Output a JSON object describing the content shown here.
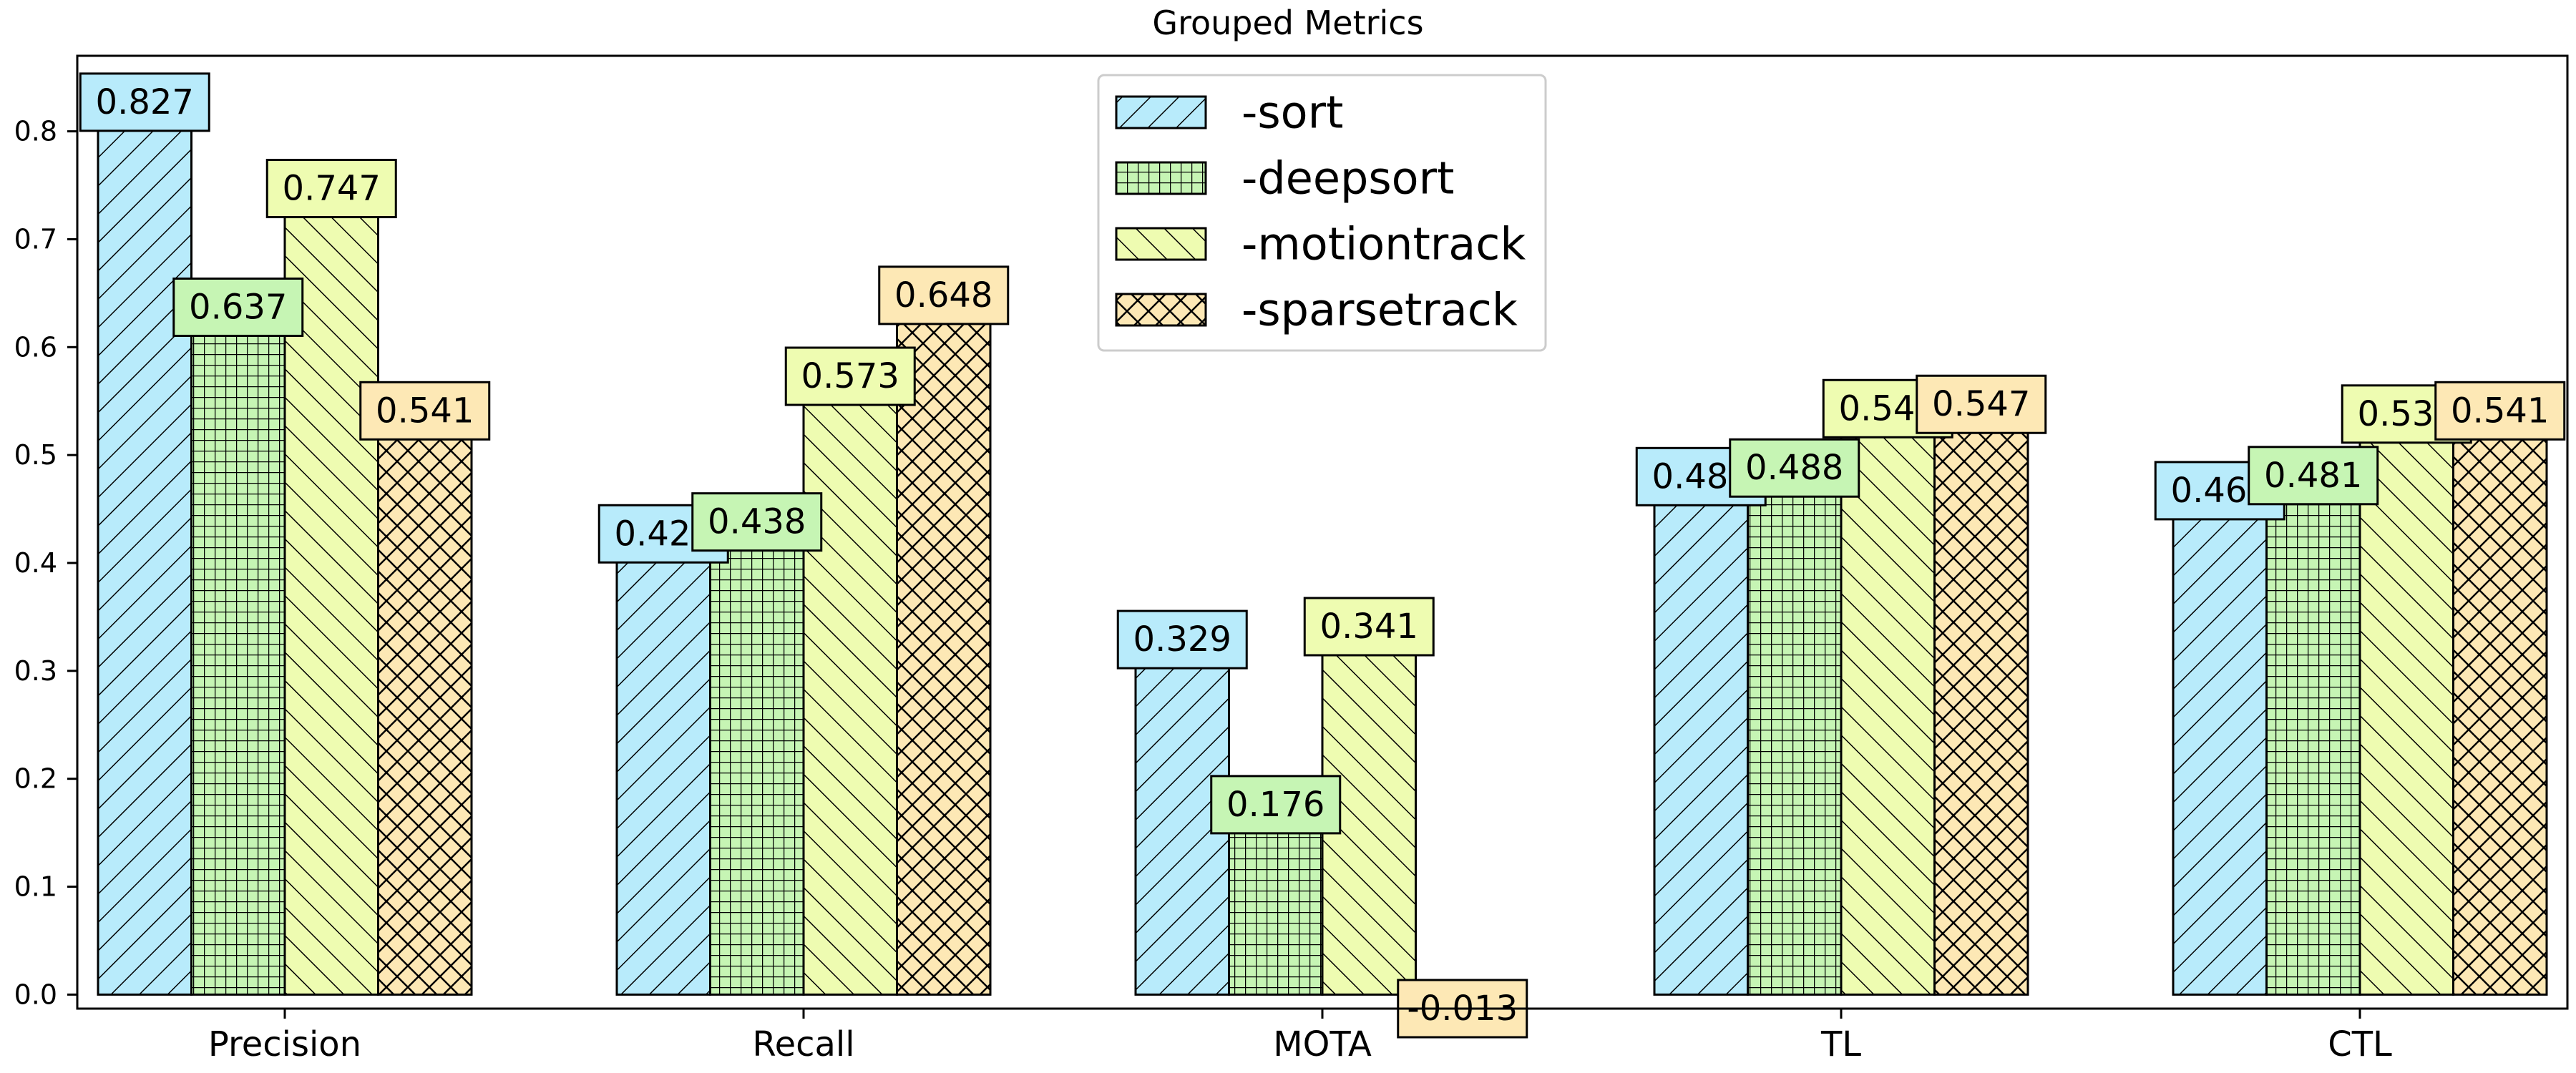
{
  "chart_data": {
    "type": "bar",
    "title": "Grouped Metrics",
    "xlabel": "",
    "ylabel": "",
    "categories": [
      "Precision",
      "Recall",
      "MOTA",
      "TL",
      "CTL"
    ],
    "series": [
      {
        "name": "-sort",
        "values": [
          0.827,
          0.427,
          0.329,
          0.48,
          0.467
        ],
        "color": "#b8ebfb",
        "hatch": "diagonal"
      },
      {
        "name": "-deepsort",
        "values": [
          0.637,
          0.438,
          0.176,
          0.488,
          0.481
        ],
        "color": "#c6f5b4",
        "hatch": "grid"
      },
      {
        "name": "-motiontrack",
        "values": [
          0.747,
          0.573,
          0.341,
          0.543,
          0.538
        ],
        "color": "#eefcb1",
        "hatch": "backdiagonal"
      },
      {
        "name": "-sparsetrack",
        "values": [
          0.541,
          0.648,
          -0.013,
          0.547,
          0.541
        ],
        "color": "#fde8b5",
        "hatch": "crosshatch"
      }
    ],
    "bar_heights": [
      [
        0.827,
        0.427,
        0.329,
        0.48,
        0.467
      ],
      [
        0.637,
        0.438,
        0.176,
        0.488,
        0.481
      ],
      [
        0.747,
        0.573,
        0.341,
        0.543,
        0.538
      ],
      [
        0.541,
        0.648,
        -0.013,
        0.547,
        0.541
      ]
    ],
    "label_heights": [
      [
        0.827,
        0.427,
        0.329,
        0.48,
        0.467
      ],
      [
        0.637,
        0.438,
        0.176,
        0.488,
        0.481
      ],
      [
        0.747,
        0.573,
        0.341,
        0.543,
        0.538
      ],
      [
        0.541,
        0.648,
        -0.013,
        0.547,
        0.541
      ]
    ],
    "yticks": [
      "0.0",
      "0.1",
      "0.2",
      "0.3",
      "0.4",
      "0.5",
      "0.6",
      "0.7",
      "0.8"
    ],
    "ylim": [
      -0.013,
      0.87
    ],
    "grid": false,
    "legend_position": "top-center"
  }
}
